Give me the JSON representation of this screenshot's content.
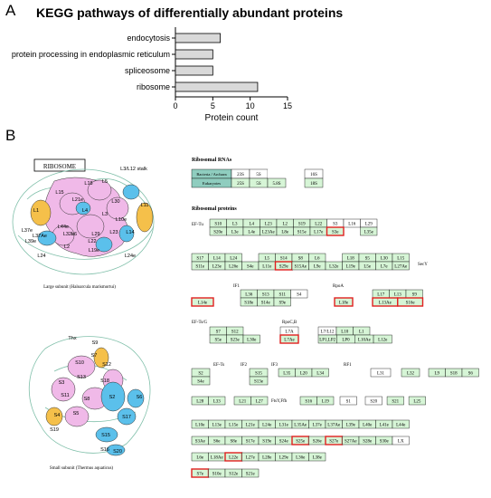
{
  "panel_a": {
    "letter": "A",
    "title": "KEGG pathways of differentially abundant proteins",
    "chart_data": {
      "type": "bar",
      "orientation": "horizontal",
      "categories": [
        "endocytosis",
        "protein processing in endoplasmic reticulum",
        "spliceosome",
        "ribosome"
      ],
      "values": [
        6,
        5,
        5,
        11
      ],
      "xlabel": "Protein count",
      "ylabel": "",
      "xlim": [
        0,
        15
      ],
      "xticks": [
        "0",
        "5",
        "10",
        "15"
      ],
      "bar_color": "#d9d9d9"
    }
  },
  "panel_b": {
    "letter": "B",
    "ribosome_label": "RIBOSOME",
    "large_subunit_caption": "Large subunit (Haloarcula marismortui)",
    "small_subunit_caption": "Small subunit (Thermus aquaticus)",
    "large_labels": [
      "L18",
      "L5",
      "L15",
      "L21e",
      "L30",
      "L1",
      "L4",
      "L3",
      "L10e",
      "L11",
      "L37Ae",
      "L44e",
      "L32e",
      "L6",
      "L2",
      "L22",
      "L14",
      "L29",
      "L23",
      "L19e",
      "L24",
      "L37e",
      "L24e",
      "L39e",
      "L3/L12 stalk"
    ],
    "small_labels": [
      "Thx",
      "S9",
      "S7",
      "S10",
      "S13",
      "S3",
      "S11",
      "S18",
      "S2",
      "S12",
      "S6",
      "S4",
      "S8",
      "S5",
      "S17",
      "S15",
      "S16",
      "S20",
      "S19"
    ],
    "rrna_title": "Ribosomal RNAs",
    "rrna_rows": [
      {
        "label": "Bacteria / Archaea",
        "cells": [
          "23S",
          "5S",
          "",
          "16S"
        ]
      },
      {
        "label": "Eukaryotes",
        "cells": [
          "25S",
          "5S",
          "5.8S",
          "18S"
        ]
      }
    ],
    "proteins_title": "Ribosomal proteins",
    "factors": {
      "ef_tu": "EF-Tu",
      "secy": "SecY",
      "if1": "IF1",
      "rpoa": "RpoA",
      "ef_tsg": "EF-Ts/G",
      "rpocb": "RpoC,B",
      "ef_ts": "EF-Ts",
      "if2": "IF2",
      "if3": "IF3",
      "rf1": "RF1",
      "fus": "FtsY,Ffh"
    },
    "highlighted": [
      "S3e",
      "S29e",
      "S7e",
      "L14e",
      "L18e",
      "L13Ae",
      "S16e",
      "L7Ae",
      "S25e",
      "S27e",
      "L22e",
      "S7e_b"
    ],
    "blocks": {
      "b1_top": [
        "S10",
        "L3",
        "L4",
        "L23",
        "L2",
        "S19",
        "L22",
        "S3",
        "L16",
        "L29"
      ],
      "b1_bot": [
        "S20e",
        "L3e",
        "L4e",
        "L23Ae",
        "L8e",
        "S15e",
        "L17e",
        "S3e",
        "",
        "L35e"
      ],
      "b2_top": [
        "S17",
        "L14",
        "L24",
        "",
        "L5",
        "S14",
        "S8",
        "L6",
        "",
        "L18",
        "S5",
        "L30",
        "L15"
      ],
      "b2_bot": [
        "S11e",
        "L23e",
        "L26e",
        "S4e",
        "L11e",
        "S29e",
        "S15Ae",
        "L9e",
        "L32e",
        "L19e",
        "L5e",
        "L7e",
        "L27Ae"
      ],
      "b3a_top": [
        "L36",
        "S13",
        "S11",
        "S4"
      ],
      "b3a_bot": [
        "S18e",
        "S14e",
        "S9e"
      ],
      "b3_l14e": "L14e",
      "b3_l18e": "L18e",
      "b3_right_top": [
        "L17",
        "L13",
        "S9"
      ],
      "b3_right_bot": [
        "L13Ae",
        "S16e"
      ],
      "b4_top": [
        "S7",
        "S12"
      ],
      "b4_bot": [
        "S5e",
        "S23e",
        "L30e"
      ],
      "b4_l7a": "L7A",
      "b4_l7ae": "L7Ae",
      "b4_right_top": [
        "L10",
        "L1"
      ],
      "b4_right_bot": [
        "LP1,LP2",
        "LP0",
        "L10Ae",
        "L12e"
      ],
      "b4_l7l12": "L7/L12",
      "b5_s2": "S2",
      "b5_s4e": "S4e",
      "b5_mid_top": "S15",
      "b5_mid_bot": "S13e",
      "b5_row": [
        "L35",
        "L20",
        "L34"
      ],
      "b5_l31": "L31",
      "b5_l32": "L32",
      "b5_right": [
        "L9",
        "S18",
        "S6"
      ],
      "b6_left": [
        "L28",
        "L33",
        "L21",
        "L27"
      ],
      "b6_mid": [
        "S16",
        "L19"
      ],
      "b6_w1": "S1",
      "b6_right": [
        "S20",
        "S21",
        "L25"
      ],
      "b7_row1": [
        "L10e",
        "L13e",
        "L15e",
        "L21e",
        "L24e",
        "L31e",
        "L35Ae",
        "L37e",
        "L37Ae",
        "L39e",
        "L40e",
        "L41e",
        "L44e"
      ],
      "b7_row2": [
        "S3Ae",
        "S6e",
        "S8e",
        "S17e",
        "S19e",
        "S24e",
        "S25e",
        "S26e",
        "S27e",
        "S27Ae",
        "S28e",
        "S30e",
        "LX"
      ],
      "b7_row3": [
        "L6e",
        "L18Ae",
        "L22e",
        "L27e",
        "L28e",
        "L29e",
        "L36e",
        "L38e"
      ],
      "b7_row4": [
        "S7e",
        "S10e",
        "S12e",
        "S21e"
      ]
    }
  }
}
